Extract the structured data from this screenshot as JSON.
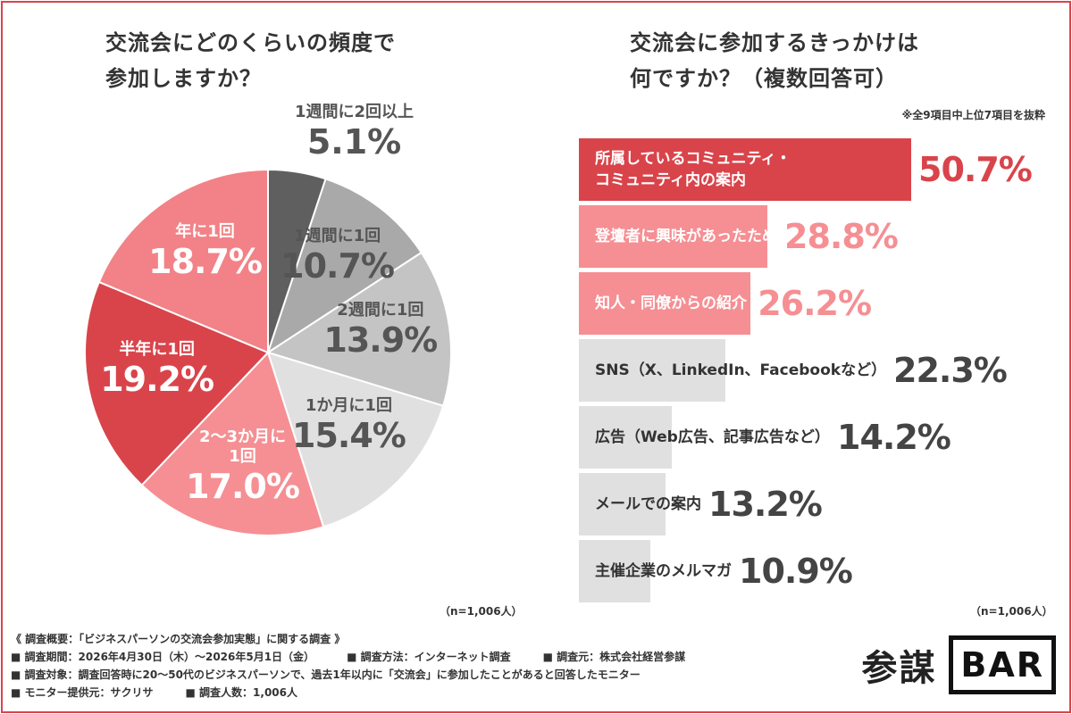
{
  "left": {
    "title": "交流会にどのくらいの頻度で\n参加しますか？",
    "n_note": "（n=1,006人）"
  },
  "right": {
    "title": "交流会に参加するきっかけは\n何ですか？（複数回答可）",
    "note": "※全9項目中上位7項目を抜粋",
    "n_note": "（n=1,006人）"
  },
  "chart_data": [
    {
      "type": "pie",
      "title": "交流会にどのくらいの頻度で参加しますか？",
      "categories": [
        "1週間に2回以上",
        "1週間に1回",
        "2週間に1回",
        "1か月に1回",
        "2〜3か月に1回",
        "半年に1回",
        "年に1回"
      ],
      "labels": [
        "1週間に2回以上",
        "1週間に1回",
        "2週間に1回",
        "1か月に1回",
        "2〜3か月に\n1回",
        "半年に1回",
        "年に1回"
      ],
      "values": [
        5.1,
        10.7,
        13.9,
        15.4,
        17.0,
        19.2,
        18.7
      ],
      "value_labels": [
        "5.1%",
        "10.7%",
        "13.9%",
        "15.4%",
        "17.0%",
        "19.2%",
        "18.7%"
      ],
      "colors": [
        "#5f5f5f",
        "#a9a9a9",
        "#c4c4c4",
        "#e0e0e0",
        "#f58f93",
        "#d9444b",
        "#f28287"
      ]
    },
    {
      "type": "bar",
      "orientation": "horizontal",
      "title": "交流会に参加するきっかけは何ですか？（複数回答可）",
      "categories": [
        "所属しているコミュニティ・\nコミュニティ内の案内",
        "登壇者に興味があったため",
        "知人・同僚からの紹介",
        "SNS（X、LinkedIn、Facebookなど）",
        "広告（Web広告、記事広告など）",
        "メールでの案内",
        "主催企業のメルマガ"
      ],
      "values": [
        50.7,
        28.8,
        26.2,
        22.3,
        14.2,
        13.2,
        10.9
      ],
      "value_labels": [
        "50.7%",
        "28.8%",
        "26.2%",
        "22.3%",
        "14.2%",
        "13.2%",
        "10.9%"
      ],
      "colors": [
        "#d9444b",
        "#f58f93",
        "#f58f93",
        "#e0e0e0",
        "#e0e0e0",
        "#e0e0e0",
        "#e0e0e0"
      ],
      "text_colors": [
        "#fff",
        "#fff",
        "#fff",
        "#333",
        "#333",
        "#333",
        "#333"
      ],
      "value_colors": [
        "#d9444b",
        "#f58f93",
        "#f58f93",
        "#444",
        "#444",
        "#444",
        "#444"
      ]
    }
  ],
  "footer": {
    "overview": "《 調査概要：「ビジネスパーソンの交流会参加実態」に関する調査 》",
    "period": "■ 調査期間：2026年4月30日（木）〜2026年5月1日（金）",
    "method": "■ 調査方法：インターネット調査",
    "source": "■ 調査元：株式会社経営参謀",
    "target": "■ 調査対象：調査回答時に20〜50代のビジネスパーソンで、過去1年以内に「交流会」に参加したことがあると回答したモニター",
    "provider": "■ モニター提供元：サクリサ",
    "count": "■ 調査人数：1,006人"
  },
  "logo": {
    "kanji": "参謀",
    "bar": "BAR"
  }
}
